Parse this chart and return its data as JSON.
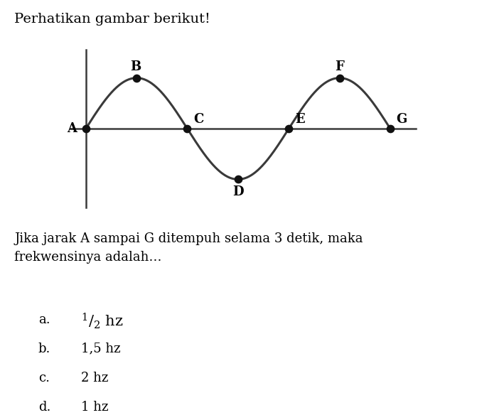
{
  "title": "Perhatikan gambar berikut!",
  "question": "Jika jarak A sampai G ditempuh selama 3 detik, maka\nfrekwensinya adalah…",
  "options": [
    {
      "label": "a.",
      "text_parts": [
        "1",
        "2",
        " hz"
      ],
      "type": "fraction"
    },
    {
      "label": "b.",
      "text": "1,5 hz",
      "type": "plain"
    },
    {
      "label": "c.",
      "text": "2 hz",
      "type": "plain"
    },
    {
      "label": "d.",
      "text": "1 hz",
      "type": "plain"
    }
  ],
  "wave_points": {
    "A": [
      0,
      0
    ],
    "B": [
      1,
      1
    ],
    "C": [
      2,
      0
    ],
    "D": [
      3,
      -1
    ],
    "E": [
      4,
      0
    ],
    "F": [
      5,
      1
    ],
    "G": [
      6,
      0
    ]
  },
  "wave_color": "#3a3a3a",
  "axis_color": "#3a3a3a",
  "dot_color": "#111111",
  "background_color": "#ffffff",
  "title_fontsize": 14,
  "label_fontsize": 13,
  "question_fontsize": 13,
  "option_fontsize": 13
}
